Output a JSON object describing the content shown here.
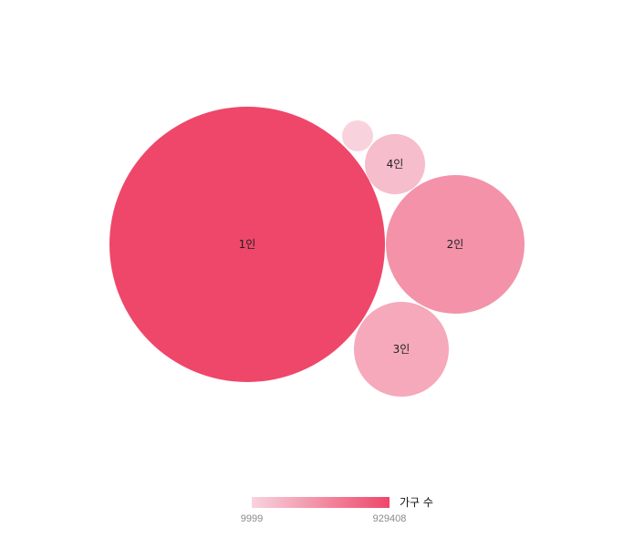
{
  "chart_data": {
    "type": "bubble",
    "series": [
      {
        "name": "1인",
        "value": 929408,
        "label": "1인"
      },
      {
        "name": "2인",
        "value": 235000,
        "label": "2인"
      },
      {
        "name": "3인",
        "value": 113000,
        "label": "3인"
      },
      {
        "name": "4인",
        "value": 41000,
        "label": "4인"
      },
      {
        "name": "",
        "value": 9999,
        "label": ""
      }
    ],
    "color_scale": {
      "min": 9999,
      "max": 929408,
      "min_color": "#f8d3de",
      "max_color": "#ee476a"
    },
    "legend": {
      "title": "가구 수",
      "min_label": "9999",
      "max_label": "929408",
      "placement": "bottom-center"
    }
  }
}
